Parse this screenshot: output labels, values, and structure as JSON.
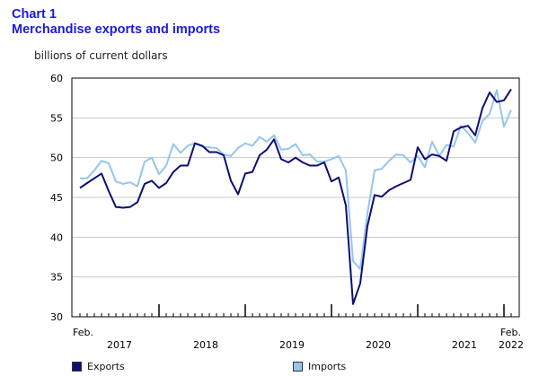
{
  "header": {
    "chart_number": "Chart 1",
    "title": "Merchandise exports and imports"
  },
  "chart_data": {
    "type": "line",
    "title": "Merchandise exports and imports",
    "ylabel": "billions of current dollars",
    "xlabel": "",
    "ylim": [
      30,
      60
    ],
    "yticks": [
      30,
      35,
      40,
      45,
      50,
      55,
      60
    ],
    "grid": true,
    "x_start_label": "Feb.",
    "x_end_label": "Feb.",
    "year_labels": [
      "2017",
      "2018",
      "2019",
      "2020",
      "2021",
      "2022"
    ],
    "period": "monthly, Feb. 2017 to Feb. 2022",
    "colors": {
      "exports": "#0d0d73",
      "imports": "#94c6ee"
    },
    "series": [
      {
        "name": "Exports",
        "values": [
          46.2,
          46.8,
          47.4,
          48.0,
          45.8,
          43.8,
          43.7,
          43.8,
          44.4,
          46.7,
          47.1,
          46.2,
          46.8,
          48.2,
          49.0,
          49.0,
          51.8,
          51.5,
          50.7,
          50.7,
          50.3,
          47.1,
          45.4,
          48.0,
          48.2,
          50.3,
          51.0,
          52.3,
          49.8,
          49.4,
          50.0,
          49.4,
          49.0,
          49.0,
          49.4,
          47.0,
          47.5,
          44.0,
          31.6,
          34.2,
          41.4,
          45.3,
          45.1,
          45.9,
          46.4,
          46.8,
          47.2,
          51.3,
          49.8,
          50.4,
          50.2,
          49.6,
          53.3,
          53.8,
          54.0,
          52.8,
          56.2,
          58.2,
          57.0,
          57.2,
          58.6
        ]
      },
      {
        "name": "Imports",
        "values": [
          47.4,
          47.4,
          48.4,
          49.6,
          49.3,
          47.0,
          46.7,
          46.9,
          46.4,
          49.5,
          50.0,
          47.9,
          49.0,
          51.7,
          50.6,
          51.5,
          51.8,
          51.4,
          51.3,
          51.2,
          50.4,
          50.2,
          51.2,
          51.8,
          51.5,
          52.6,
          52.0,
          52.8,
          51.0,
          51.1,
          51.7,
          50.3,
          50.4,
          49.5,
          49.5,
          49.8,
          50.2,
          48.4,
          37.0,
          36.0,
          43.0,
          48.4,
          48.6,
          49.6,
          50.4,
          50.3,
          49.4,
          50.2,
          48.8,
          52.0,
          50.2,
          51.6,
          51.4,
          54.0,
          53.1,
          51.9,
          54.6,
          55.5,
          58.5,
          53.9,
          56.0
        ]
      }
    ]
  }
}
